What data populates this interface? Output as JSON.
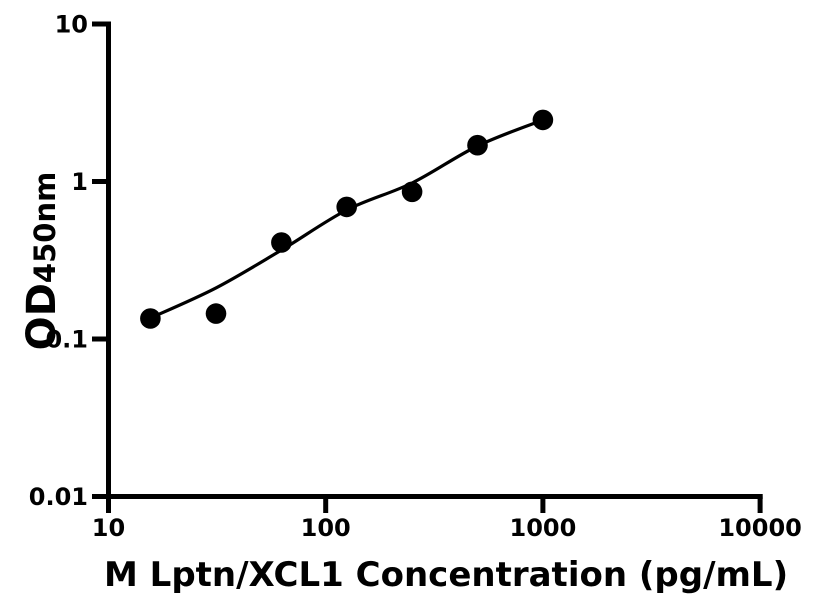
{
  "figure": {
    "background_color": "#ffffff",
    "ink_color": "#000000"
  },
  "chart_data": {
    "type": "scatter",
    "title": "",
    "xlabel": "M Lptn/XCL1 Concentration (pg/mL)",
    "ylabel_main": "OD",
    "ylabel_sub": "450nm",
    "x_scale": "log10",
    "y_scale": "log10",
    "xlim": [
      10,
      10000
    ],
    "ylim": [
      0.01,
      10
    ],
    "x_ticks": [
      10,
      100,
      1000,
      10000
    ],
    "x_tick_labels": [
      "10",
      "100",
      "1000",
      "10000"
    ],
    "y_ticks": [
      0.01,
      0.1,
      1,
      10
    ],
    "y_tick_labels": [
      "0.01",
      "0.1",
      "1",
      "10"
    ],
    "grid": false,
    "legend": null,
    "marker_color": "#000000",
    "line_color": "#000000",
    "series": [
      {
        "name": "standard-points",
        "type": "scatter",
        "marker": "filled-circle",
        "x": [
          15.6,
          31.25,
          62.5,
          125,
          250,
          500,
          1000
        ],
        "y": [
          0.135,
          0.145,
          0.41,
          0.69,
          0.86,
          1.7,
          2.46
        ]
      },
      {
        "name": "fit-curve",
        "type": "line",
        "x": [
          15.6,
          31.25,
          62.5,
          125,
          250,
          500,
          1000
        ],
        "y": [
          0.136,
          0.211,
          0.367,
          0.659,
          0.978,
          1.681,
          2.457
        ]
      }
    ]
  }
}
